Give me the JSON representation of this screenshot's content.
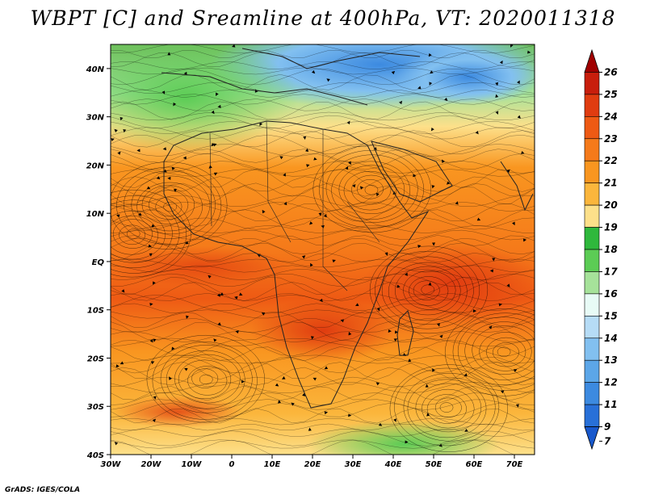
{
  "title": "WBPT [C] and Sreamline at 400hPa, VT: 2020011318",
  "credit": "GrADS: IGES/COLA",
  "map": {
    "lon_range": [
      -30,
      75
    ],
    "lat_range": [
      -40,
      45
    ],
    "lat_ticks": [
      {
        "value": 40,
        "label": "40N"
      },
      {
        "value": 30,
        "label": "30N"
      },
      {
        "value": 20,
        "label": "20N"
      },
      {
        "value": 10,
        "label": "10N"
      },
      {
        "value": 0,
        "label": "EQ"
      },
      {
        "value": -10,
        "label": "10S"
      },
      {
        "value": -20,
        "label": "20S"
      },
      {
        "value": -30,
        "label": "30S"
      },
      {
        "value": -40,
        "label": "40S"
      }
    ],
    "lon_ticks": [
      {
        "value": -30,
        "label": "30W"
      },
      {
        "value": -20,
        "label": "20W"
      },
      {
        "value": -10,
        "label": "10W"
      },
      {
        "value": 0,
        "label": "0"
      },
      {
        "value": 10,
        "label": "10E"
      },
      {
        "value": 20,
        "label": "20E"
      },
      {
        "value": 30,
        "label": "30E"
      },
      {
        "value": 40,
        "label": "40E"
      },
      {
        "value": 50,
        "label": "50E"
      },
      {
        "value": 60,
        "label": "60E"
      },
      {
        "value": 70,
        "label": "70E"
      }
    ]
  },
  "colorbar": {
    "levels": [
      {
        "label": "26",
        "color": "#a00000"
      },
      {
        "label": "25",
        "color": "#c81e0c"
      },
      {
        "label": "24",
        "color": "#e03c10"
      },
      {
        "label": "23",
        "color": "#ee5a14"
      },
      {
        "label": "22",
        "color": "#f57a1a"
      },
      {
        "label": "21",
        "color": "#f99620"
      },
      {
        "label": "20",
        "color": "#fbb63c"
      },
      {
        "label": "19",
        "color": "#fde08a"
      },
      {
        "label": "18",
        "color": "#2fb83c"
      },
      {
        "label": "17",
        "color": "#5ccc55"
      },
      {
        "label": "16",
        "color": "#a6e29a"
      },
      {
        "label": "15",
        "color": "#e8fbf6"
      },
      {
        "label": "14",
        "color": "#b6dcf6"
      },
      {
        "label": "13",
        "color": "#82c0f0"
      },
      {
        "label": "12",
        "color": "#5ca6e8"
      },
      {
        "label": "11",
        "color": "#3c8ae0"
      },
      {
        "label": "9",
        "color": "#2870d8"
      },
      {
        "label": "7",
        "color": "#1858cc"
      }
    ]
  }
}
